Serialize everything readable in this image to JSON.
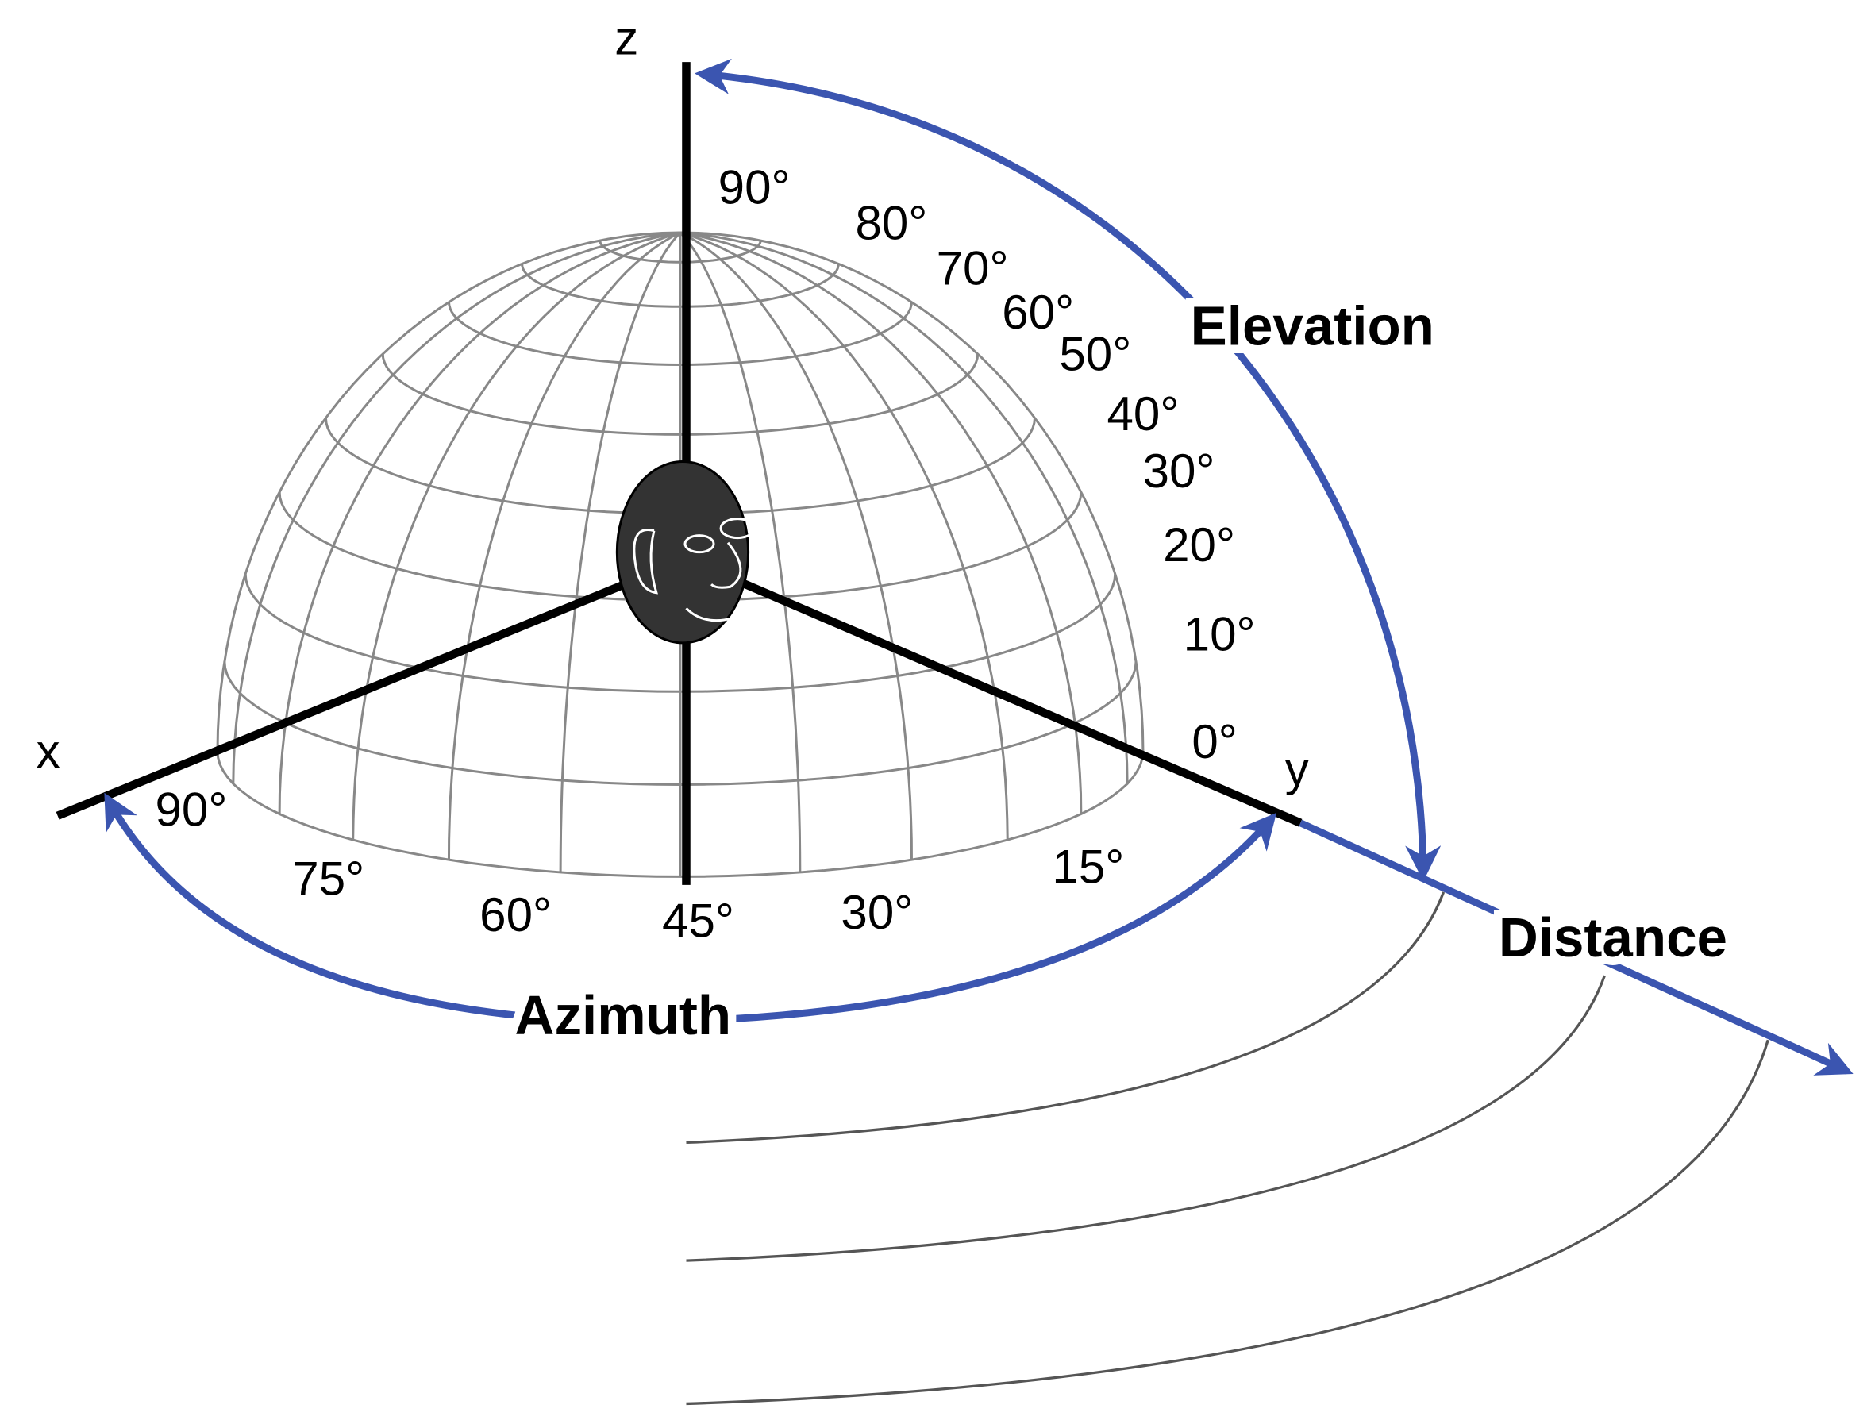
{
  "axes": {
    "x": "x",
    "y": "y",
    "z": "z"
  },
  "elevation": {
    "label": "Elevation",
    "ticks": [
      "90°",
      "80°",
      "70°",
      "60°",
      "50°",
      "40°",
      "30°",
      "20°",
      "10°",
      "0°"
    ]
  },
  "azimuth": {
    "label": "Azimuth",
    "ticks": [
      "90°",
      "75°",
      "60°",
      "45°",
      "30°",
      "15°"
    ]
  },
  "distance": {
    "label": "Distance"
  }
}
